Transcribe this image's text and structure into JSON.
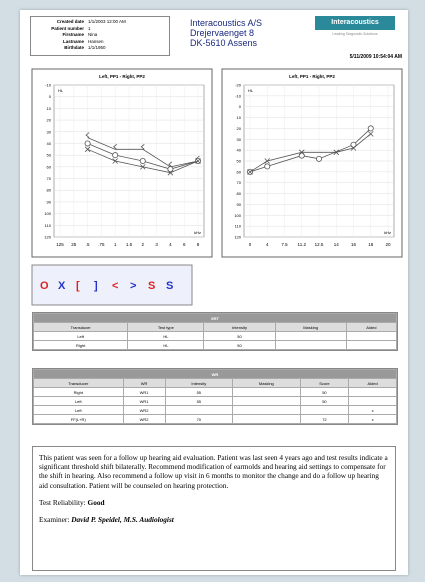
{
  "header": {
    "fields": [
      {
        "label": "Created date",
        "value": "1/1/2003 12:00 AM"
      },
      {
        "label": "Patient number",
        "value": "1"
      },
      {
        "label": "Firstname",
        "value": "Nina"
      },
      {
        "label": "Lastname",
        "value": "Hansen"
      },
      {
        "label": "Birthdate",
        "value": "1/1/1950"
      }
    ]
  },
  "company": {
    "name": "Interacoustics A/S",
    "street": "Drejervaenget 8",
    "city": "DK-5610 Assens"
  },
  "logo": {
    "name": "Interacoustics",
    "tagline": "Leading Diagnostic Solutions"
  },
  "date": "5/11/2009 10:54:04 AM",
  "charts": [
    {
      "title": "Left, PP1 - Right, PP2",
      "unit": "HL",
      "xunit": "kHz",
      "y_inverted": true,
      "grid": true,
      "categories": [
        "125",
        "25",
        ".5",
        ".75",
        "1",
        "1.5",
        "2",
        "3",
        "4",
        "6",
        "8"
      ],
      "ylim": [
        -10,
        120
      ],
      "yticks": [
        -10,
        0,
        10,
        20,
        30,
        40,
        50,
        60,
        70,
        80,
        90,
        100,
        110,
        120
      ],
      "series": [
        {
          "symbol": "<",
          "color": "#555555",
          "values": [
            null,
            null,
            35,
            null,
            45,
            null,
            45,
            null,
            60,
            null,
            55
          ]
        },
        {
          "symbol": "o",
          "color": "#555555",
          "values": [
            null,
            null,
            40,
            null,
            50,
            null,
            55,
            null,
            62,
            null,
            55
          ]
        },
        {
          "symbol": "x",
          "color": "#555555",
          "values": [
            null,
            null,
            45,
            null,
            55,
            null,
            60,
            null,
            65,
            null,
            55
          ]
        }
      ]
    },
    {
      "title": "Left, PP1 - Right, PP2",
      "unit": "HL",
      "xunit": "kHz",
      "y_inverted": true,
      "grid": true,
      "categories": [
        "0",
        "4",
        "7.5",
        "11.2",
        "12.5",
        "14",
        "16",
        "18",
        "20"
      ],
      "ylim": [
        -20,
        120
      ],
      "yticks": [
        -20,
        -10,
        0,
        10,
        20,
        30,
        40,
        50,
        60,
        70,
        80,
        90,
        100,
        110,
        120
      ],
      "series": [
        {
          "symbol": "o",
          "color": "#555555",
          "values": [
            60,
            55,
            null,
            45,
            48,
            null,
            35,
            20,
            null
          ]
        },
        {
          "symbol": "x",
          "color": "#555555",
          "values": [
            60,
            50,
            null,
            42,
            null,
            42,
            38,
            25,
            null
          ]
        }
      ]
    }
  ],
  "symbols": [
    {
      "glyph": "O",
      "color": "#d22"
    },
    {
      "glyph": "X",
      "color": "#23c"
    },
    {
      "glyph": "[",
      "color": "#d22"
    },
    {
      "glyph": "]",
      "color": "#23c"
    },
    {
      "glyph": "<",
      "color": "#d22"
    },
    {
      "glyph": ">",
      "color": "#23c"
    },
    {
      "glyph": "S",
      "color": "#d22"
    },
    {
      "glyph": "S",
      "color": "#23c"
    }
  ],
  "srt": {
    "title": "SRT",
    "columns": [
      "Transducer",
      "Test type",
      "Intensity",
      "Masking",
      "Aided"
    ],
    "rows": [
      [
        "Left",
        "HL",
        "50",
        null,
        null
      ],
      [
        "Right",
        "HL",
        "50",
        null,
        null
      ]
    ]
  },
  "wr": {
    "title": "WR",
    "columns": [
      "Transducer",
      "WR",
      "Intensity",
      "Masking",
      "Score",
      "Aided"
    ],
    "rows": [
      [
        "Right",
        "WR1",
        "55",
        null,
        "50",
        null
      ],
      [
        "Left",
        "WR1",
        "55",
        null,
        "50",
        null
      ],
      [
        "Left",
        "WR2",
        null,
        null,
        null,
        "x"
      ],
      [
        "FF(L+R)",
        "WR2",
        "70",
        null,
        "72",
        "x"
      ]
    ]
  },
  "notes": {
    "paragraph": "This patient was seen for a follow up hearing aid evaluation. Patient was last seen 4 years ago and test results indicate a significant threshold shift bilaterally. Recommend modification of earmolds and hearing aid settings to compensate for the shift in hearing. Also recommend a follow up visit in 6 months to monitor the change and do a follow up hearing aid consultation. Patient will be counseled on hearing protection.",
    "reliability_label": "Test Reliability:",
    "reliability": "Good",
    "examiner_label": "Examiner:",
    "examiner": "David P. Speidel, M.S. Audiologist"
  }
}
